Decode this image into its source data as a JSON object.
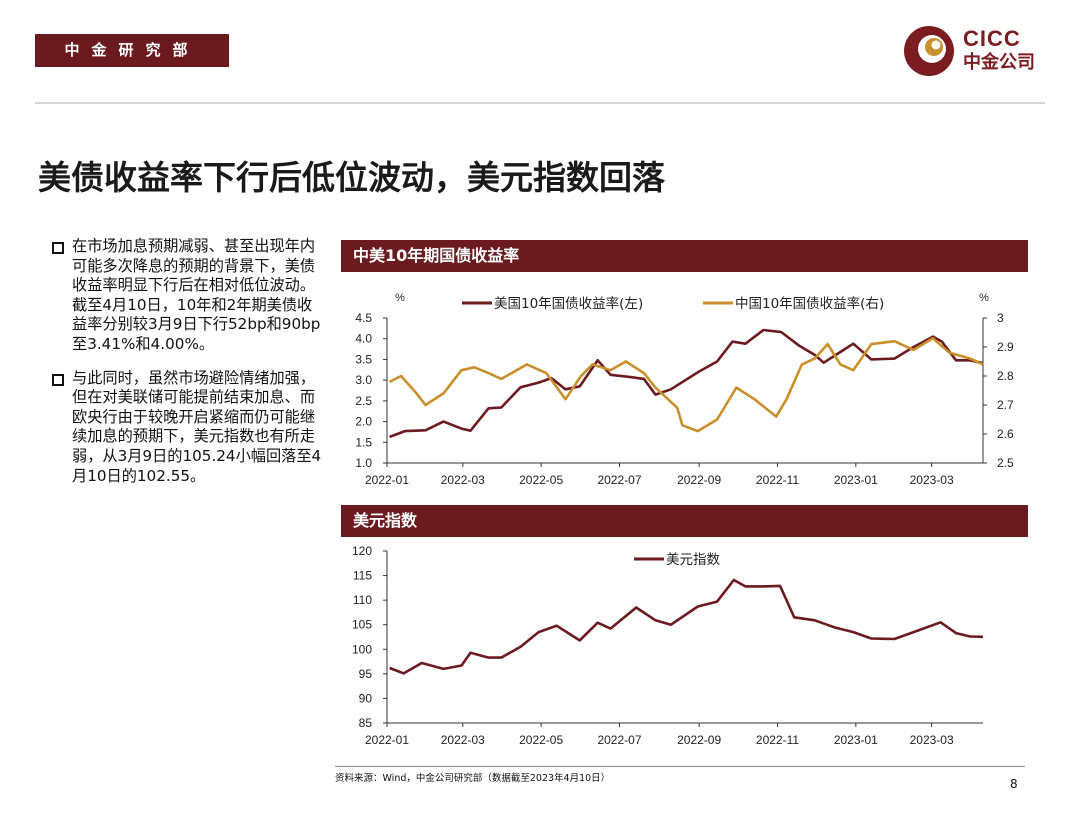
{
  "header": {
    "dept": "中金研究部",
    "logo_en": "CICC",
    "logo_cn": "中金公司"
  },
  "title": "美债收益率下行后低位波动，美元指数回落",
  "bullets": [
    "在市场加息预期减弱、甚至出现年内可能多次降息的预期的背景下，美债收益率明显下行后在相对低位波动。截至4月10日，10年和2年期美债收益率分别较3月9日下行52bp和90bp至3.41%和4.00%。",
    "与此同时，虽然市场避险情绪加强，但在对美联储可能提前结束加息、而欧央行由于较晚开启紧缩而仍可能继续加息的预期下，美元指数也有所走弱，从3月9日的105.24小幅回落至4月10日的102.55。"
  ],
  "source": "资料来源：Wind，中金公司研究部（数据截至2023年4月10日）",
  "page_number": "8",
  "colors": {
    "brand": "#6b1a1f",
    "us_series": "#6b1a1f",
    "cn_series": "#c98f2a"
  },
  "chart_data": [
    {
      "type": "line",
      "title": "中美10年期国债收益率",
      "ylabel": "%",
      "y2label": "%",
      "ylim": [
        1.0,
        4.5
      ],
      "y2lim": [
        2.5,
        3.0
      ],
      "yticks": [
        "1.0",
        "1.5",
        "2.0",
        "2.5",
        "3.0",
        "3.5",
        "4.0",
        "4.5"
      ],
      "y2ticks": [
        "2.5",
        "2.6",
        "2.7",
        "2.8",
        "2.9",
        "3"
      ],
      "xlim": [
        "2022-01-01",
        "2023-04-10"
      ],
      "xticks": [
        "2022-01",
        "2022-03",
        "2022-05",
        "2022-07",
        "2022-09",
        "2022-11",
        "2023-01",
        "2023-03"
      ],
      "legend_position": "top",
      "grid": false,
      "series": [
        {
          "name": "美国10年国债收益率(左)",
          "axis": "left",
          "color": "#6b1a1f",
          "x": [
            "2022-01-03",
            "2022-01-15",
            "2022-01-31",
            "2022-02-14",
            "2022-02-28",
            "2022-03-07",
            "2022-03-21",
            "2022-03-31",
            "2022-04-15",
            "2022-04-29",
            "2022-05-09",
            "2022-05-20",
            "2022-05-31",
            "2022-06-14",
            "2022-06-24",
            "2022-07-08",
            "2022-07-20",
            "2022-07-29",
            "2022-08-10",
            "2022-08-31",
            "2022-09-15",
            "2022-09-27",
            "2022-10-07",
            "2022-10-21",
            "2022-11-04",
            "2022-11-18",
            "2022-11-30",
            "2022-12-07",
            "2022-12-20",
            "2022-12-30",
            "2023-01-13",
            "2023-01-31",
            "2023-02-15",
            "2023-03-02",
            "2023-03-09",
            "2023-03-20",
            "2023-03-31",
            "2023-04-10"
          ],
          "values": [
            1.63,
            1.77,
            1.79,
            2.0,
            1.83,
            1.78,
            2.32,
            2.34,
            2.83,
            2.94,
            3.05,
            2.78,
            2.85,
            3.48,
            3.13,
            3.08,
            3.03,
            2.65,
            2.78,
            3.19,
            3.45,
            3.93,
            3.88,
            4.21,
            4.16,
            3.83,
            3.61,
            3.42,
            3.68,
            3.88,
            3.5,
            3.52,
            3.8,
            4.05,
            3.93,
            3.48,
            3.48,
            3.41
          ]
        },
        {
          "name": "中国10年国债收益率(右)",
          "axis": "right",
          "color": "#c98f2a",
          "x": [
            "2022-01-03",
            "2022-01-12",
            "2022-01-24",
            "2022-01-31",
            "2022-02-14",
            "2022-02-28",
            "2022-03-10",
            "2022-03-21",
            "2022-03-31",
            "2022-04-20",
            "2022-05-05",
            "2022-05-20",
            "2022-06-01",
            "2022-06-10",
            "2022-06-24",
            "2022-07-06",
            "2022-07-20",
            "2022-07-29",
            "2022-08-15",
            "2022-08-19",
            "2022-08-31",
            "2022-09-15",
            "2022-09-30",
            "2022-10-14",
            "2022-10-31",
            "2022-11-08",
            "2022-11-20",
            "2022-11-30",
            "2022-12-10",
            "2022-12-20",
            "2022-12-30",
            "2023-01-13",
            "2023-01-31",
            "2023-02-15",
            "2023-03-02",
            "2023-03-15",
            "2023-03-31",
            "2023-04-10"
          ],
          "values": [
            2.78,
            2.8,
            2.74,
            2.7,
            2.74,
            2.82,
            2.83,
            2.81,
            2.79,
            2.84,
            2.81,
            2.72,
            2.8,
            2.84,
            2.82,
            2.85,
            2.81,
            2.76,
            2.69,
            2.63,
            2.61,
            2.65,
            2.76,
            2.72,
            2.66,
            2.72,
            2.84,
            2.86,
            2.91,
            2.84,
            2.82,
            2.91,
            2.92,
            2.89,
            2.93,
            2.88,
            2.86,
            2.84
          ]
        }
      ]
    },
    {
      "type": "line",
      "title": "美元指数",
      "ylim": [
        85,
        120
      ],
      "yticks": [
        "85",
        "90",
        "95",
        "100",
        "105",
        "110",
        "115",
        "120"
      ],
      "xlim": [
        "2022-01-01",
        "2023-04-10"
      ],
      "xticks": [
        "2022-01",
        "2022-03",
        "2022-05",
        "2022-07",
        "2022-09",
        "2022-11",
        "2023-01",
        "2023-03"
      ],
      "legend_position": "top",
      "grid": false,
      "series": [
        {
          "name": "美元指数",
          "color": "#6b1a1f",
          "x": [
            "2022-01-03",
            "2022-01-14",
            "2022-01-28",
            "2022-02-14",
            "2022-02-28",
            "2022-03-07",
            "2022-03-21",
            "2022-03-31",
            "2022-04-15",
            "2022-04-29",
            "2022-05-13",
            "2022-05-31",
            "2022-06-14",
            "2022-06-24",
            "2022-07-14",
            "2022-07-29",
            "2022-08-10",
            "2022-08-31",
            "2022-09-15",
            "2022-09-28",
            "2022-10-07",
            "2022-10-20",
            "2022-11-03",
            "2022-11-14",
            "2022-11-30",
            "2022-12-15",
            "2022-12-30",
            "2023-01-13",
            "2023-01-31",
            "2023-02-15",
            "2023-03-08",
            "2023-03-20",
            "2023-03-31",
            "2023-04-10"
          ],
          "values": [
            96.2,
            95.1,
            97.2,
            96.0,
            96.7,
            99.3,
            98.3,
            98.3,
            100.5,
            103.5,
            104.8,
            101.8,
            105.4,
            104.2,
            108.5,
            105.9,
            105.0,
            108.7,
            109.7,
            114.1,
            112.8,
            112.8,
            112.9,
            106.5,
            105.9,
            104.5,
            103.5,
            102.2,
            102.1,
            103.5,
            105.5,
            103.3,
            102.6,
            102.55
          ]
        }
      ]
    }
  ]
}
